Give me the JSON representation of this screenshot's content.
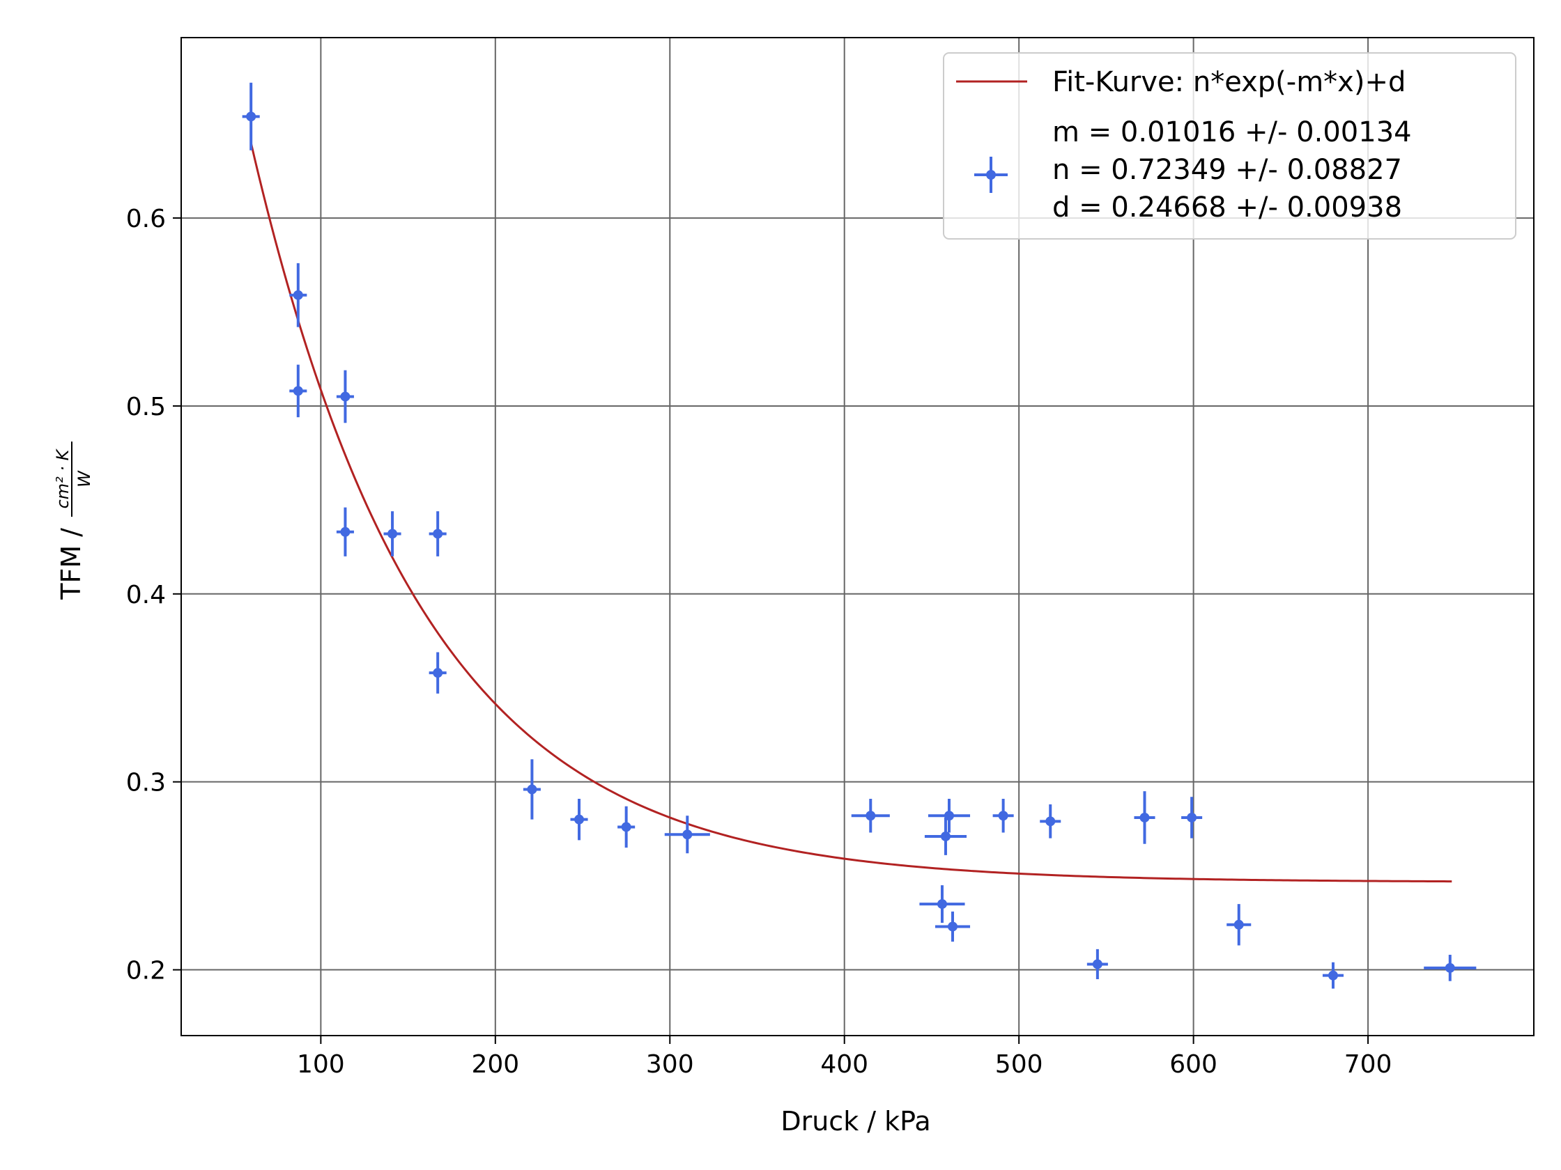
{
  "chart_data": {
    "type": "scatter",
    "xlabel": "Druck / kPa",
    "ylabel_prefix": "TFM /",
    "ylabel_unit_numerator": "cm² · K",
    "ylabel_unit_denominator": "W",
    "xlim": [
      20,
      795
    ],
    "ylim": [
      0.165,
      0.696
    ],
    "xticks": [
      100,
      200,
      300,
      400,
      500,
      600,
      700
    ],
    "yticks": [
      0.2,
      0.3,
      0.4,
      0.5,
      0.6
    ],
    "grid": true,
    "legend_position": "top-right",
    "colors": {
      "points": "#4169e1",
      "fit": "#b22222",
      "grid": "#666666"
    },
    "fit": {
      "label": "Fit-Kurve: n*exp(-m*x)+d",
      "model": "n*exp(-m*x)+d",
      "m": 0.01016,
      "n": 0.72349,
      "d": 0.24668,
      "x_range": [
        60,
        748
      ]
    },
    "points_legend": [
      "m = 0.01016 +/- 0.00134",
      "n = 0.72349 +/- 0.08827",
      "d = 0.24668 +/- 0.00938"
    ],
    "points": [
      {
        "x": 60,
        "y": 0.654,
        "xerr": 5,
        "yerr": 0.018
      },
      {
        "x": 87,
        "y": 0.559,
        "xerr": 5,
        "yerr": 0.017
      },
      {
        "x": 87,
        "y": 0.508,
        "xerr": 5,
        "yerr": 0.014
      },
      {
        "x": 114,
        "y": 0.505,
        "xerr": 5,
        "yerr": 0.014
      },
      {
        "x": 114,
        "y": 0.433,
        "xerr": 5,
        "yerr": 0.013
      },
      {
        "x": 141,
        "y": 0.432,
        "xerr": 5,
        "yerr": 0.012
      },
      {
        "x": 167,
        "y": 0.432,
        "xerr": 5,
        "yerr": 0.012
      },
      {
        "x": 167,
        "y": 0.358,
        "xerr": 5,
        "yerr": 0.011
      },
      {
        "x": 221,
        "y": 0.296,
        "xerr": 5,
        "yerr": 0.016
      },
      {
        "x": 248,
        "y": 0.28,
        "xerr": 5,
        "yerr": 0.011
      },
      {
        "x": 275,
        "y": 0.276,
        "xerr": 5,
        "yerr": 0.011
      },
      {
        "x": 310,
        "y": 0.272,
        "xerr": 13,
        "yerr": 0.01
      },
      {
        "x": 415,
        "y": 0.282,
        "xerr": 11,
        "yerr": 0.009
      },
      {
        "x": 456,
        "y": 0.235,
        "xerr": 13,
        "yerr": 0.01
      },
      {
        "x": 458,
        "y": 0.271,
        "xerr": 12,
        "yerr": 0.01
      },
      {
        "x": 460,
        "y": 0.282,
        "xerr": 12,
        "yerr": 0.009
      },
      {
        "x": 462,
        "y": 0.223,
        "xerr": 10,
        "yerr": 0.008
      },
      {
        "x": 491,
        "y": 0.282,
        "xerr": 6,
        "yerr": 0.009
      },
      {
        "x": 518,
        "y": 0.279,
        "xerr": 6,
        "yerr": 0.009
      },
      {
        "x": 545,
        "y": 0.203,
        "xerr": 6,
        "yerr": 0.008
      },
      {
        "x": 572,
        "y": 0.281,
        "xerr": 6,
        "yerr": 0.014
      },
      {
        "x": 599,
        "y": 0.281,
        "xerr": 6,
        "yerr": 0.011
      },
      {
        "x": 626,
        "y": 0.224,
        "xerr": 7,
        "yerr": 0.011
      },
      {
        "x": 680,
        "y": 0.197,
        "xerr": 6,
        "yerr": 0.007
      },
      {
        "x": 747,
        "y": 0.201,
        "xerr": 15,
        "yerr": 0.007
      }
    ]
  }
}
